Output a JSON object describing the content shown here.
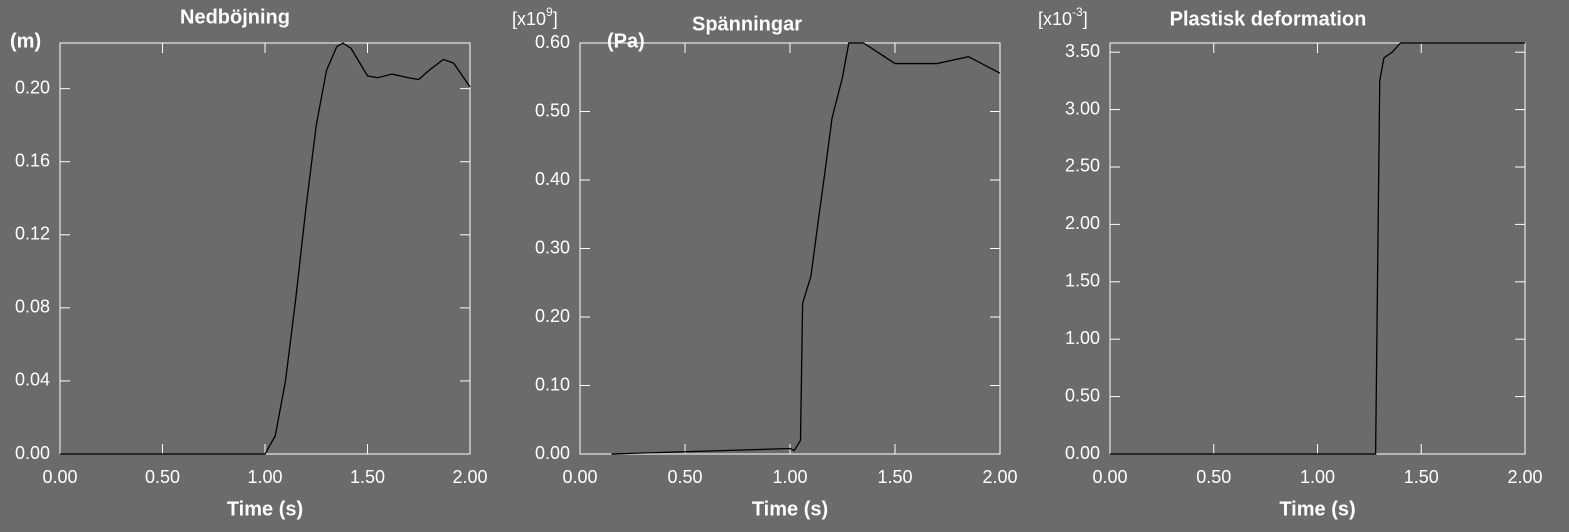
{
  "chart_data": [
    {
      "type": "line",
      "title": "Nedböjning",
      "y_unit": "(m)",
      "x_label": "Time (s)",
      "x": [
        0,
        1.0,
        1.05,
        1.1,
        1.15,
        1.2,
        1.25,
        1.3,
        1.35,
        1.38,
        1.42,
        1.5,
        1.55,
        1.62,
        1.7,
        1.75,
        1.8,
        1.87,
        1.92,
        2.0
      ],
      "series": [
        {
          "color": "#000000",
          "values": [
            0,
            0,
            0.01,
            0.04,
            0.085,
            0.135,
            0.18,
            0.21,
            0.223,
            0.225,
            0.222,
            0.207,
            0.206,
            0.208,
            0.206,
            0.205,
            0.21,
            0.216,
            0.214,
            0.201
          ]
        }
      ],
      "xlim": [
        0,
        2
      ],
      "ylim": [
        0,
        0.225
      ],
      "xticks": [
        {
          "value": 0,
          "label": "0.00"
        },
        {
          "value": 0.5,
          "label": "0.50"
        },
        {
          "value": 1,
          "label": "1.00"
        },
        {
          "value": 1.5,
          "label": "1.50"
        },
        {
          "value": 2,
          "label": "2.00"
        }
      ],
      "yticks": [
        {
          "value": 0,
          "label": "0.00"
        },
        0.04,
        0.08,
        0.12,
        0.16,
        {
          "value": 0.2,
          "label": "0.20"
        }
      ]
    },
    {
      "type": "line",
      "title": "Spänningar",
      "y_multiplier": [
        "[x10",
        "9",
        "]"
      ],
      "y_unit": "(Pa)",
      "x_label": "Time (s)",
      "x": [
        0.15,
        1.0,
        1.02,
        1.05,
        1.06,
        1.08,
        1.1,
        1.13,
        1.17,
        1.2,
        1.25,
        1.28,
        1.35,
        1.4,
        1.5,
        1.7,
        1.85,
        2.0
      ],
      "series": [
        {
          "color": "#000000",
          "values": [
            0,
            0.008,
            0.005,
            0.02,
            0.22,
            0.24,
            0.26,
            0.33,
            0.42,
            0.49,
            0.55,
            0.6,
            0.6,
            0.59,
            0.57,
            0.57,
            0.58,
            0.556
          ]
        }
      ],
      "xlim": [
        0,
        2
      ],
      "ylim": [
        0,
        0.6
      ],
      "xticks": [
        {
          "value": 0,
          "label": "0.00"
        },
        {
          "value": 0.5,
          "label": "0.50"
        },
        {
          "value": 1,
          "label": "1.00"
        },
        {
          "value": 1.5,
          "label": "1.50"
        },
        {
          "value": 2,
          "label": "2.00"
        }
      ],
      "yticks": [
        {
          "value": 0,
          "label": "0.00"
        },
        {
          "value": 0.1,
          "label": "0.10"
        },
        {
          "value": 0.2,
          "label": "0.20"
        },
        {
          "value": 0.3,
          "label": "0.30"
        },
        {
          "value": 0.4,
          "label": "0.40"
        },
        {
          "value": 0.5,
          "label": "0.50"
        },
        {
          "value": 0.6,
          "label": "0.60"
        }
      ]
    },
    {
      "type": "line",
      "title": "Plastisk deformation",
      "y_multiplier": [
        "[x10",
        "-3",
        "]"
      ],
      "x_label": "Time (s)",
      "x": [
        0,
        1.28,
        1.3,
        1.32,
        1.36,
        1.4,
        2.0
      ],
      "series": [
        {
          "color": "#000000",
          "values": [
            0,
            0,
            3.25,
            3.45,
            3.5,
            3.58,
            3.58
          ]
        }
      ],
      "xlim": [
        0,
        2
      ],
      "ylim": [
        0,
        3.58
      ],
      "xticks": [
        {
          "value": 0,
          "label": "0.00"
        },
        {
          "value": 0.5,
          "label": "0.50"
        },
        {
          "value": 1,
          "label": "1.00"
        },
        {
          "value": 1.5,
          "label": "1.50"
        },
        {
          "value": 2,
          "label": "2.00"
        }
      ],
      "yticks": [
        {
          "value": 0,
          "label": "0.00"
        },
        {
          "value": 0.5,
          "label": "0.50"
        },
        {
          "value": 1,
          "label": "1.00"
        },
        {
          "value": 1.5,
          "label": "1.50"
        },
        {
          "value": 2,
          "label": "2.00"
        },
        {
          "value": 2.5,
          "label": "2.50"
        },
        {
          "value": 3,
          "label": "3.00"
        },
        {
          "value": 3.5,
          "label": "3.50"
        }
      ]
    }
  ]
}
